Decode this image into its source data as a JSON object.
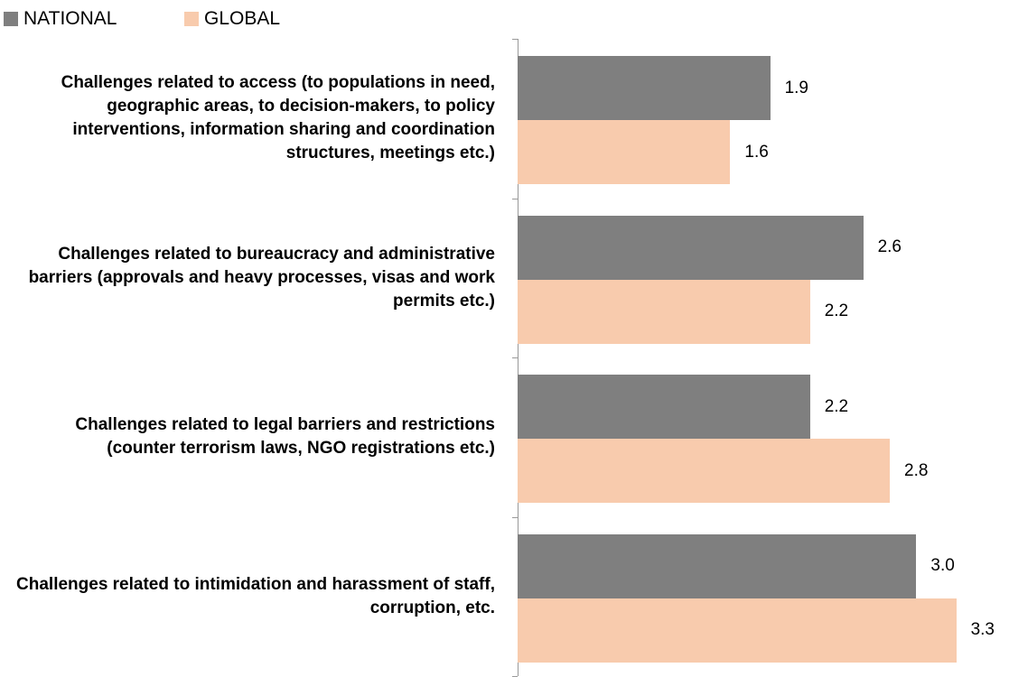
{
  "chart_data": {
    "type": "bar",
    "orientation": "horizontal",
    "categories": [
      "Challenges related to access (to populations in need, geographic areas, to decision-makers, to policy interventions, information sharing and coordination structures, meetings etc.)",
      "Challenges related to bureaucracy and administrative barriers (approvals and heavy processes, visas and work permits etc.)",
      "Challenges related to legal barriers and restrictions (counter terrorism laws, NGO registrations etc.)",
      "Challenges related to intimidation and harassment of staff, corruption, etc."
    ],
    "series": [
      {
        "name": "NATIONAL",
        "color": "#7f7f7f",
        "values": [
          1.9,
          2.6,
          2.2,
          3.0
        ],
        "value_labels": [
          "1.9",
          "2.6",
          "2.2",
          "3.0"
        ]
      },
      {
        "name": "GLOBAL",
        "color": "#f8cbad",
        "values": [
          1.6,
          2.2,
          2.8,
          3.3
        ],
        "value_labels": [
          "1.6",
          "2.2",
          "2.8",
          "3.3"
        ]
      }
    ],
    "xlim": [
      0,
      3.5
    ],
    "legend": "top-left"
  }
}
